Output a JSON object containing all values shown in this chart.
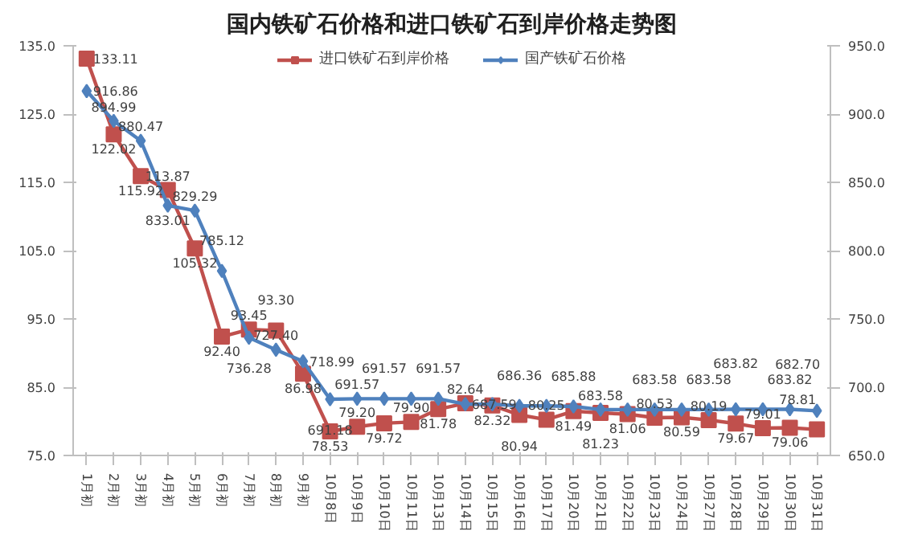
{
  "chart_data": {
    "type": "line",
    "title": "国内铁矿石价格和进口铁矿石到岸价格走势图",
    "categories": [
      "1月初",
      "2月初",
      "3月初",
      "4月初",
      "5月初",
      "6月初",
      "7月初",
      "8月初",
      "9月初",
      "10月8日",
      "10月9日",
      "10月10日",
      "10月11日",
      "10月13日",
      "10月14日",
      "10月15日",
      "10月16日",
      "10月17日",
      "10月20日",
      "10月21日",
      "10月22日",
      "10月23日",
      "10月24日",
      "10月27日",
      "10月28日",
      "10月29日",
      "10月30日",
      "10月31日"
    ],
    "series": [
      {
        "name": "进口铁矿石到岸价格",
        "color": "#c0504d",
        "marker": "square",
        "values": [
          133.11,
          122.02,
          115.92,
          113.87,
          105.32,
          92.4,
          93.45,
          93.3,
          86.98,
          78.53,
          79.2,
          79.72,
          79.9,
          81.78,
          82.64,
          82.32,
          80.94,
          80.25,
          81.49,
          81.23,
          81.06,
          80.53,
          80.59,
          80.19,
          79.67,
          79.01,
          79.06,
          78.81
        ],
        "value_labels": [
          "133.11",
          "122.02",
          "115.92",
          "113.87",
          "105.32",
          "92.40",
          "93.45",
          "93.30",
          "86.98",
          "78.53",
          "79.20",
          "79.72",
          "79.90",
          "81.78",
          "82.64",
          "82.32",
          "80.94",
          "80.25",
          "81.49",
          "81.23",
          "81.06",
          "80.53",
          "80.59",
          "80.19",
          "79.67",
          "79.01",
          "79.06",
          "78.81"
        ]
      },
      {
        "name": "国产铁矿石价格",
        "color": "#4f81bd",
        "marker": "diamond",
        "axis": "y2",
        "values": [
          916.86,
          894.99,
          880.47,
          833.01,
          829.29,
          785.12,
          736.28,
          727.4,
          718.99,
          691.18,
          691.57,
          691.57,
          691.57,
          691.57,
          687.59,
          687.59,
          686.36,
          686.36,
          685.88,
          683.58,
          683.58,
          683.58,
          683.58,
          683.58,
          683.82,
          683.82,
          683.82,
          682.7
        ],
        "value_labels": [
          "916.86",
          "894.99",
          "880.47",
          "833.01",
          "829.29",
          "785.12",
          "736.28",
          "727.40",
          "718.99",
          "691.18",
          "691.57",
          "691.57",
          null,
          "691.57",
          "687.59",
          null,
          "686.36",
          null,
          "685.88",
          "683.58",
          null,
          "683.58",
          null,
          "683.58",
          "683.82",
          null,
          "683.82",
          "682.70"
        ]
      }
    ],
    "ylim": [
      75,
      135
    ],
    "yticks": [
      {
        "value": 75,
        "label": "75.0"
      },
      {
        "value": 85,
        "label": "85.0"
      },
      {
        "value": 95,
        "label": "95.0"
      },
      {
        "value": 105,
        "label": "105.0"
      },
      {
        "value": 115,
        "label": "115.0"
      },
      {
        "value": 125,
        "label": "125.0"
      },
      {
        "value": 135,
        "label": "135.0"
      }
    ],
    "y2lim": [
      650,
      950
    ],
    "y2ticks": [
      {
        "value": 650,
        "label": "650.0"
      },
      {
        "value": 700,
        "label": "700.0"
      },
      {
        "value": 750,
        "label": "750.0"
      },
      {
        "value": 800,
        "label": "800.0"
      },
      {
        "value": 850,
        "label": "850.0"
      },
      {
        "value": 900,
        "label": "900.0"
      },
      {
        "value": 950,
        "label": "950.0"
      }
    ],
    "grid": false,
    "legend": "top",
    "line_style": "solid"
  }
}
